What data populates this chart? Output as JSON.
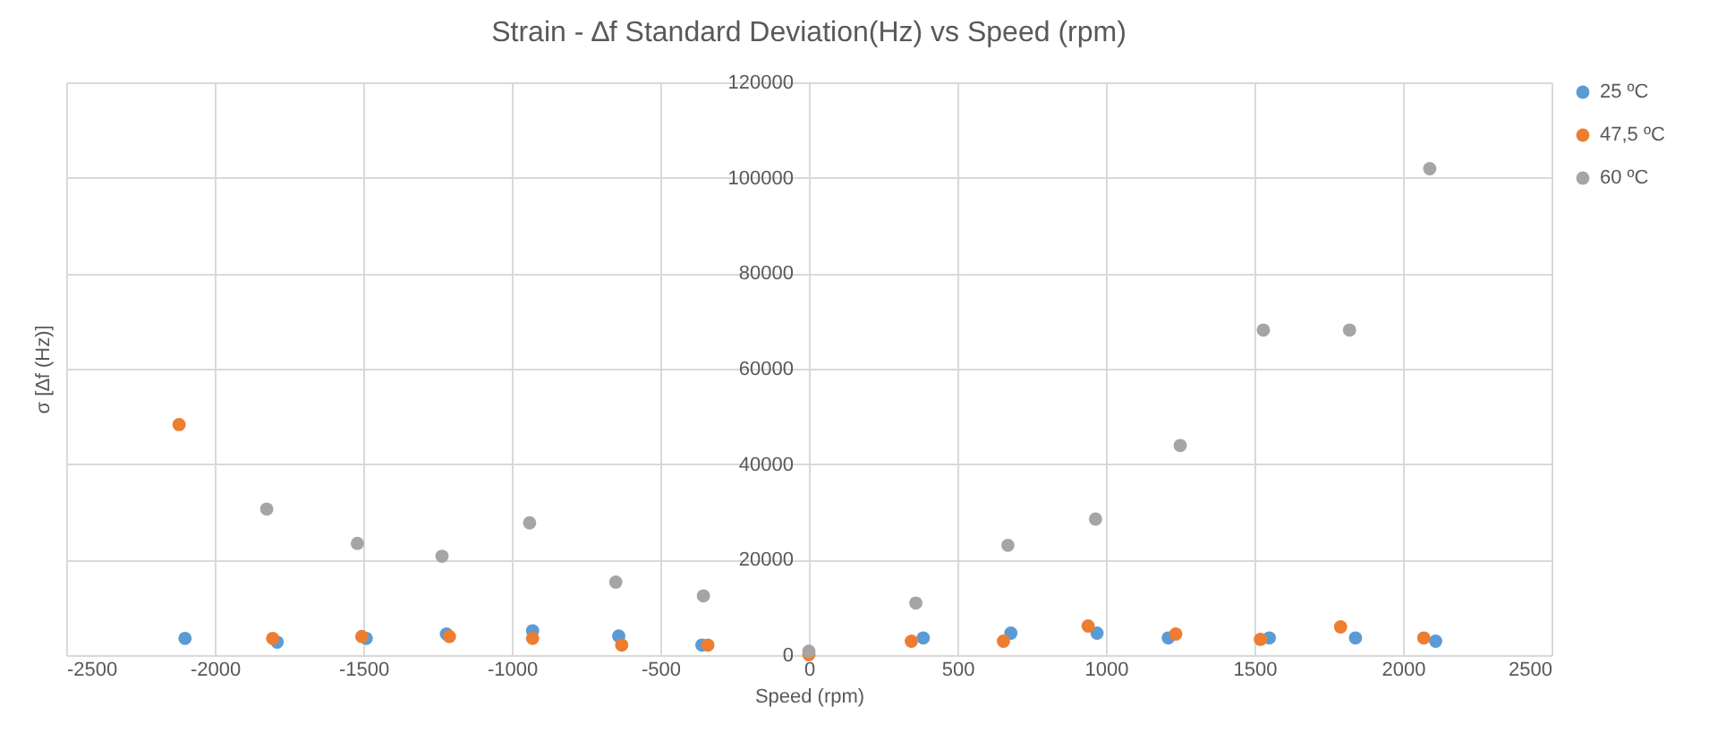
{
  "chart_data": {
    "type": "scatter",
    "title": "Strain - ∆f Standard Deviation(Hz) vs Speed (rpm)",
    "xlabel": "Speed (rpm)",
    "ylabel": "σ [∆f (Hz)]",
    "series": [
      {
        "name": "25 ºC",
        "color": "#5b9bd5",
        "x": [
          -2100,
          -1790,
          -1490,
          -1220,
          -930,
          -640,
          -360,
          385,
          680,
          970,
          1210,
          1550,
          1840,
          2110
        ],
        "values": [
          3500,
          2700,
          3500,
          4400,
          5100,
          4000,
          2100,
          3600,
          4600,
          4600,
          3600,
          3600,
          3600,
          2900
        ]
      },
      {
        "name": "47,5 ºC",
        "color": "#ed7d31",
        "x": [
          -2120,
          -1805,
          -1505,
          -1210,
          -930,
          -630,
          -340,
          0,
          345,
          655,
          940,
          1235,
          1520,
          1790,
          2070
        ],
        "values": [
          48300,
          3500,
          3900,
          3900,
          3500,
          2100,
          2100,
          100,
          2900,
          2900,
          6100,
          4400,
          3300,
          5900,
          3600
        ]
      },
      {
        "name": "60 ºC",
        "color": "#a5a5a5",
        "x": [
          -1825,
          -1520,
          -1235,
          -940,
          -650,
          -355,
          0,
          360,
          670,
          965,
          1250,
          1530,
          1820,
          2090
        ],
        "values": [
          30600,
          23400,
          20700,
          27700,
          15300,
          12400,
          800,
          10900,
          23000,
          28500,
          43900,
          68100,
          68100,
          101900
        ]
      }
    ],
    "xlim": [
      -2500,
      2500
    ],
    "xticks": [
      -2500,
      -2000,
      -1500,
      -1000,
      -500,
      0,
      500,
      1000,
      1500,
      2000,
      2500
    ],
    "ylim": [
      0,
      120000
    ],
    "yticks": [
      0,
      20000,
      40000,
      60000,
      80000,
      100000,
      120000
    ],
    "grid": true,
    "legend": "right",
    "marker": "circle"
  }
}
